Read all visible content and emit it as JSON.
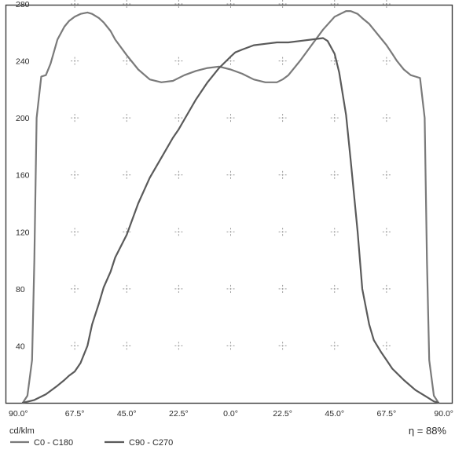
{
  "chart_data": {
    "type": "line",
    "title": "",
    "xlabel": "",
    "ylabel": "cd/klm",
    "x_tick_labels": [
      "90.0°",
      "67.5°",
      "45.0°",
      "22.5°",
      "0.0°",
      "22.5°",
      "45.0°",
      "67.5°",
      "90.0°"
    ],
    "y_ticks": [
      40,
      80,
      120,
      160,
      200,
      240,
      280
    ],
    "ylim": [
      0,
      280
    ],
    "x_ticks_deg": [
      -90,
      -67.5,
      -45,
      -22.5,
      0,
      22.5,
      45,
      67.5,
      90
    ],
    "xlim": [
      -90,
      90
    ],
    "grid": "sparse dashed markers",
    "legend_position": "bottom-left",
    "series": [
      {
        "name": "C0 - C180",
        "color": "#7a7a7a",
        "x": [
          -90,
          -88,
          -86,
          -85,
          -84,
          -82,
          -80,
          -78,
          -75,
          -72,
          -70,
          -67.5,
          -65,
          -62,
          -60,
          -57,
          -55,
          -52,
          -50,
          -45,
          -40,
          -35,
          -30,
          -25,
          -22.5,
          -20,
          -15,
          -10,
          -5,
          0,
          5,
          10,
          15,
          20,
          22.5,
          25,
          30,
          35,
          40,
          45,
          50,
          52,
          55,
          57,
          60,
          62,
          65,
          67.5,
          70,
          72,
          75,
          78,
          80,
          82,
          84,
          85,
          86,
          88,
          90
        ],
        "y": [
          0,
          5,
          30,
          100,
          200,
          229,
          230,
          238,
          255,
          264,
          268,
          271,
          273,
          274,
          273,
          270,
          267,
          261,
          255,
          244,
          234,
          227,
          225,
          226,
          228,
          230,
          233,
          235,
          236,
          234,
          231,
          227,
          225,
          225,
          227,
          230,
          240,
          251,
          262,
          271,
          275,
          275,
          273,
          270,
          266,
          262,
          256,
          251,
          245,
          240,
          234,
          230,
          229,
          228,
          200,
          100,
          30,
          5,
          0
        ]
      },
      {
        "name": "C90 - C270",
        "color": "#5a5a5a",
        "x": [
          -90,
          -85,
          -80,
          -75,
          -72,
          -70,
          -67.5,
          -65,
          -62,
          -60,
          -57,
          -55,
          -52,
          -50,
          -45,
          -40,
          -35,
          -30,
          -25,
          -22.5,
          -20,
          -15,
          -10,
          -5,
          0,
          2,
          5,
          10,
          15,
          20,
          22.5,
          25,
          30,
          35,
          40,
          42,
          45,
          47,
          50,
          52,
          55,
          57,
          60,
          62,
          65,
          67.5,
          70,
          75,
          80,
          85,
          88,
          90
        ],
        "y": [
          0,
          2,
          6,
          12,
          16,
          19,
          22,
          28,
          40,
          55,
          70,
          81,
          92,
          102,
          118,
          140,
          158,
          172,
          186,
          192,
          199,
          213,
          225,
          235,
          243,
          246,
          248,
          251,
          252,
          253,
          253,
          253,
          254,
          255,
          256,
          254,
          245,
          232,
          202,
          170,
          120,
          80,
          55,
          44,
          36,
          30,
          24,
          16,
          9,
          4,
          1,
          0
        ]
      }
    ],
    "annotations": [
      "η = 88%"
    ]
  }
}
